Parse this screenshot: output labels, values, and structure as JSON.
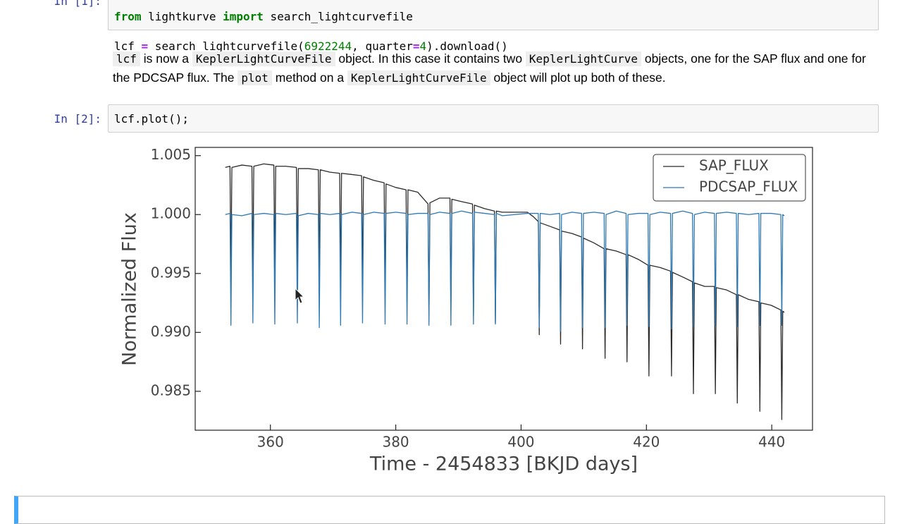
{
  "cells": [
    {
      "prompt": "In [1]:",
      "code_lines": [
        [
          "from",
          " lightkurve ",
          "import",
          " search_lightcurvefile"
        ],
        [
          "lcf ",
          "=",
          " search_lightcurvefile(",
          "6922244",
          ", quarter",
          "=",
          "4",
          ").download()"
        ]
      ]
    },
    {
      "markdown": [
        "lcf",
        " is now a ",
        "KeplerLightCurveFile",
        " object. In this case it contains two ",
        "KeplerLightCurve",
        " objects, one for the SAP flux and one for the PDCSAP flux. The ",
        "plot",
        " method on a ",
        "KeplerLightCurveFile",
        " object will plot up both of these."
      ]
    },
    {
      "prompt": "In [2]:",
      "code": "lcf.plot();"
    }
  ],
  "chart_data": {
    "type": "line",
    "xlabel": "Time - 2454833 [BKJD days]",
    "ylabel": "Normalized Flux",
    "xlim": [
      348,
      446.5
    ],
    "ylim": [
      0.9817,
      1.0057
    ],
    "xticks": [
      360,
      380,
      400,
      420,
      440
    ],
    "yticks": [
      1.005,
      {
        "value": 1.0,
        "label": "1.000"
      },
      0.995,
      {
        "value": 0.99,
        "label": "0.990"
      },
      0.985
    ],
    "legend": "upper right",
    "x": [
      352.8,
      353.55,
      353.7,
      353.85,
      355.45,
      357.05,
      357.2,
      357.35,
      358.95,
      360.55,
      360.7,
      360.85,
      362.45,
      364.15,
      364.3,
      364.45,
      366.05,
      367.65,
      367.8,
      367.95,
      369.5,
      371.05,
      371.2,
      371.35,
      373.0,
      374.55,
      374.7,
      374.85,
      376.5,
      378.15,
      378.3,
      378.45,
      380.0,
      381.65,
      381.8,
      381.95,
      383.5,
      385.15,
      385.3,
      385.45,
      387.0,
      388.65,
      388.8,
      388.95,
      390.5,
      392.25,
      392.4,
      392.55,
      394.2,
      395.75,
      395.9,
      396.05,
      397.0,
      401.0,
      402.0,
      402.75,
      402.9,
      403.05,
      404.6,
      406.15,
      406.3,
      406.45,
      408.1,
      409.65,
      409.8,
      409.95,
      411.6,
      413.25,
      413.4,
      413.55,
      415.2,
      416.75,
      416.9,
      417.05,
      418.7,
      420.25,
      420.4,
      420.55,
      422.2,
      423.85,
      424.0,
      424.15,
      425.8,
      427.35,
      427.5,
      427.65,
      429.3,
      430.85,
      431.0,
      431.15,
      432.8,
      434.35,
      434.5,
      434.65,
      436.3,
      437.95,
      438.1,
      438.25,
      439.9,
      441.45,
      441.6,
      441.75,
      442.0
    ],
    "series": [
      {
        "name": "SAP_FLUX",
        "color": "#2b2b2b",
        "values": [
          1.004,
          1.0041,
          0.9945,
          1.004,
          1.0042,
          1.0041,
          0.9946,
          1.0041,
          1.0043,
          1.0042,
          0.9947,
          1.0041,
          1.0041,
          1.004,
          0.9945,
          1.0039,
          1.0039,
          1.0038,
          0.9943,
          1.0038,
          1.0036,
          1.0035,
          0.994,
          1.0035,
          1.0034,
          1.0033,
          0.9938,
          1.0032,
          1.0029,
          1.0027,
          0.9932,
          1.0026,
          1.0023,
          1.0021,
          0.9926,
          1.0021,
          1.0019,
          1.0009,
          0.9914,
          1.001,
          1.0014,
          1.0014,
          0.9919,
          1.0013,
          1.0011,
          1.0009,
          0.9914,
          1.0008,
          1.0005,
          1.0003,
          0.9908,
          1.0003,
          1.0002,
          1.0002,
          0.9998,
          0.9994,
          0.9898,
          0.9993,
          0.999,
          0.9987,
          0.989,
          0.9986,
          0.9984,
          0.9981,
          0.9886,
          0.998,
          0.9976,
          0.9971,
          0.9878,
          0.9971,
          0.9969,
          0.9966,
          0.9875,
          0.9966,
          0.9962,
          0.9957,
          0.9863,
          0.9957,
          0.9955,
          0.9952,
          0.9863,
          0.9951,
          0.9947,
          0.9943,
          0.9848,
          0.9942,
          0.9939,
          0.9939,
          0.9848,
          0.9938,
          0.9936,
          0.9932,
          0.984,
          0.9932,
          0.9928,
          0.9926,
          0.9833,
          0.9925,
          0.9923,
          0.9919,
          0.9826,
          0.9918,
          0.9917
        ]
      },
      {
        "name": "PDCSAP_FLUX",
        "color": "#2f78b2",
        "values": [
          1.0,
          1.0001,
          0.9906,
          1.0,
          0.9999,
          1.0001,
          0.9908,
          1.0,
          1.0001,
          1.0,
          0.9907,
          1.0001,
          1.0,
          1.0001,
          0.9908,
          0.9999,
          1.0001,
          1.0,
          0.9904,
          1.0001,
          1.0,
          1.0001,
          0.9906,
          1.0,
          1.0002,
          1.0001,
          0.9908,
          1.0,
          1.0002,
          1.0001,
          0.9907,
          1.0001,
          1.0002,
          1.0001,
          0.9907,
          1.0,
          1.0001,
          1.0001,
          0.9906,
          1.0,
          1.0002,
          1.0001,
          0.9906,
          1.0001,
          1.0003,
          1.0001,
          0.9907,
          1.0002,
          1.0001,
          1.0,
          0.9907,
          1.0001,
          0.9999,
          1.0001,
          1.0001,
          1.0001,
          0.9904,
          1.0001,
          1.0,
          1.0001,
          0.9901,
          1.0,
          1.0002,
          1.0001,
          0.9904,
          1.0001,
          1.0002,
          1.0001,
          0.9904,
          1.0,
          1.0003,
          1.0001,
          0.9906,
          1.0,
          1.0001,
          1.0001,
          0.9905,
          1.0,
          1.0002,
          1.0001,
          0.9903,
          1.0001,
          1.0003,
          1.0001,
          0.9905,
          1.0,
          1.0002,
          1.0001,
          0.9906,
          1.0001,
          1.0002,
          1.0001,
          0.9905,
          1.0001,
          1.0,
          1.0001,
          0.9906,
          1.0001,
          1.0001,
          1.0,
          0.9906,
          1.0,
          0.9999
        ]
      }
    ]
  }
}
